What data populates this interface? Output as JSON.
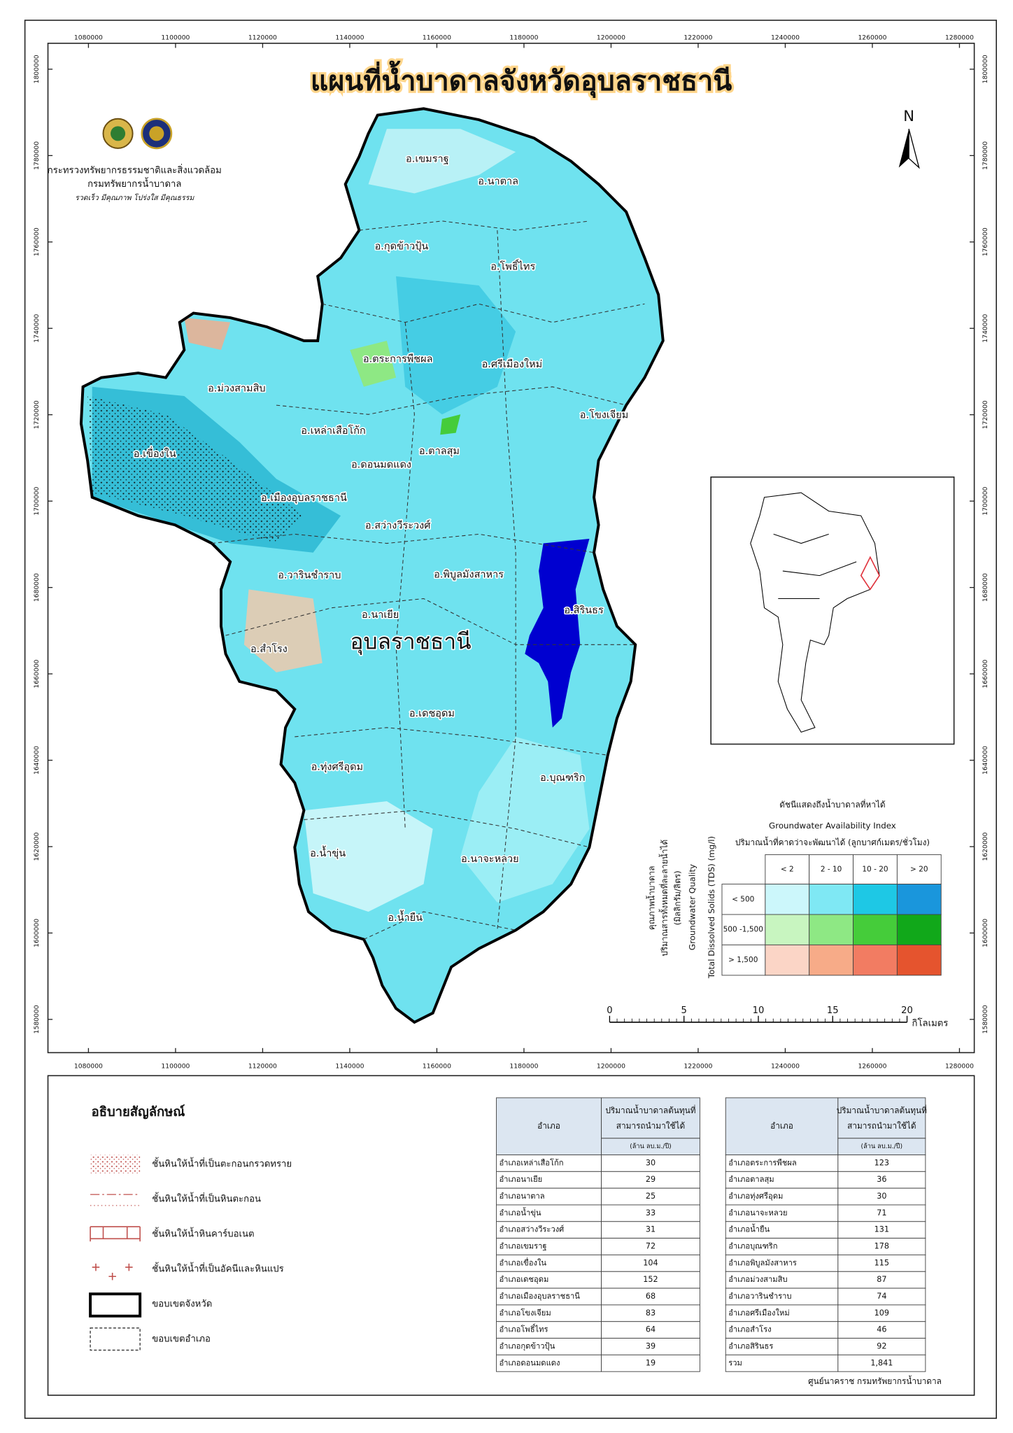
{
  "title": "แผนที่น้ำบาดาลจังหวัดอุบลราชธานี",
  "agency": {
    "ministry": "กระทรวงทรัพยากรธรรมชาติและสิ่งแวดล้อม",
    "department": "กรมทรัพยากรน้ำบาดาล",
    "motto": "รวดเร็ว มีคุณภาพ โปร่งใส มีคุณธรรม"
  },
  "north": "N",
  "map": {
    "xlim": [
      1070700,
      1283400
    ],
    "ylim": [
      1572300,
      1806000
    ],
    "xticks": [
      1080000,
      1100000,
      1120000,
      1140000,
      1160000,
      1180000,
      1200000,
      1220000,
      1240000,
      1260000,
      1280000
    ],
    "yticks": [
      1580000,
      1600000,
      1620000,
      1640000,
      1660000,
      1680000,
      1700000,
      1720000,
      1740000,
      1760000,
      1780000,
      1800000
    ],
    "province_label": "อุบลราชธานี",
    "districts": [
      "อ.เขมราฐ",
      "อ.นาตาล",
      "อ.กุดข้าวปุ้น",
      "อ.โพธิ์ไทร",
      "อ.ตระการพืชผล",
      "อ.ศรีเมืองใหม่",
      "อ.ม่วงสามสิบ",
      "อ.โขงเจียม",
      "อ.เหล่าเสือโก้ก",
      "อ.ตาลสุม",
      "อ.เขื่องใน",
      "อ.ดอนมดแดง",
      "อ.เมืองอุบลราชธานี",
      "อ.สว่างวีระวงศ์",
      "อ.วารินชำราบ",
      "อ.พิบูลมังสาหาร",
      "อ.สิรินธร",
      "อ.นาเยีย",
      "อ.สำโรง",
      "อ.เดชอุดม",
      "อ.ทุ่งศรีอุดม",
      "อ.บุณฑริก",
      "อ.น้ำขุ่น",
      "อ.นาจะหลวย",
      "อ.น้ำยืน"
    ]
  },
  "index_legend": {
    "title_th": "ดัชนีแสดงถึงน้ำบาดาลที่หาได้",
    "title_en": "Groundwater Availability Index",
    "yield_label": "ปริมาณน้ำที่คาดว่าจะพัฒนาได้ (ลูกบาศก์เมตร/ชั่วโมง)",
    "columns": [
      "< 2",
      "2 - 10",
      "10 - 20",
      "> 20"
    ],
    "rows": [
      "< 500",
      "500 -1,500",
      "> 1,500"
    ],
    "colors": [
      [
        "#ccf7fb",
        "#7fe8f4",
        "#1ec8e5",
        "#1a96dc"
      ],
      [
        "#c8f5c0",
        "#8ee884",
        "#45cc3a",
        "#11a81a"
      ],
      [
        "#fbd5c6",
        "#f7ab88",
        "#f27c62",
        "#e5542e"
      ]
    ],
    "tds_label": "Total Dissolved Solids (TDS) (mg/l)",
    "quality_label_en": "Groundwater Quality",
    "quality_label_th": [
      "คุณภาพน้ำบาดาล",
      "ปริมาณสารทั้งหมดที่ละลายน้ำได้",
      "(มิลลิกรัม/ลิตร)"
    ]
  },
  "scale_bar": {
    "ticks": [
      0,
      5,
      10,
      15,
      20
    ],
    "unit": "กิโลเมตร"
  },
  "legend": {
    "title": "อธิบายสัญลักษณ์",
    "items": [
      "ชั้นหินให้น้ำที่เป็นตะกอนกรวดทราย",
      "ชั้นหินให้น้ำที่เป็นหินตะกอน",
      "ชั้นหินให้น้ำหินคาร์บอเนต",
      "ชั้นหินให้น้ำที่เป็นอัคนีและหินแปร",
      "ขอบเขตจังหวัด",
      "ขอบเขตอำเภอ"
    ]
  },
  "table_header": {
    "district": "อำเภอ",
    "amount_lines": [
      "ปริมาณน้ำบาดาลต้นทุนที่",
      "สามารถนำมาใช้ได้"
    ],
    "unit": "(ล้าน ลบ.ม./ปี)"
  },
  "tables": [
    {
      "rows": [
        [
          "อำเภอเหล่าเสือโก้ก",
          "30"
        ],
        [
          "อำเภอนาเยีย",
          "29"
        ],
        [
          "อำเภอนาตาล",
          "25"
        ],
        [
          "อำเภอน้ำขุ่น",
          "33"
        ],
        [
          "อำเภอสว่างวีระวงศ์",
          "31"
        ],
        [
          "อำเภอเขมราฐ",
          "72"
        ],
        [
          "อำเภอเขื่องใน",
          "104"
        ],
        [
          "อำเภอเดชอุดม",
          "152"
        ],
        [
          "อำเภอเมืองอุบลราชธานี",
          "68"
        ],
        [
          "อำเภอโขงเจียม",
          "83"
        ],
        [
          "อำเภอโพธิ์ไทร",
          "64"
        ],
        [
          "อำเภอกุดข้าวปุ้น",
          "39"
        ],
        [
          "อำเภอดอนมดแดง",
          "19"
        ]
      ]
    },
    {
      "rows": [
        [
          "อำเภอตระการพืชผล",
          "123"
        ],
        [
          "อำเภอตาลสุม",
          "36"
        ],
        [
          "อำเภอทุ่งศรีอุดม",
          "30"
        ],
        [
          "อำเภอนาจะหลวย",
          "71"
        ],
        [
          "อำเภอน้ำยืน",
          "131"
        ],
        [
          "อำเภอบุณฑริก",
          "178"
        ],
        [
          "อำเภอพิบูลมังสาหาร",
          "115"
        ],
        [
          "อำเภอม่วงสามสิบ",
          "87"
        ],
        [
          "อำเภอวารินชำราบ",
          "74"
        ],
        [
          "อำเภอศรีเมืองใหม่",
          "109"
        ],
        [
          "อำเภอสำโรง",
          "46"
        ],
        [
          "อำเภอสิรินธร",
          "92"
        ],
        [
          "รวม",
          "1,841"
        ]
      ]
    }
  ],
  "footer": "ศูนย์นาคราช กรมทรัพยากรน้ำบาดาล"
}
